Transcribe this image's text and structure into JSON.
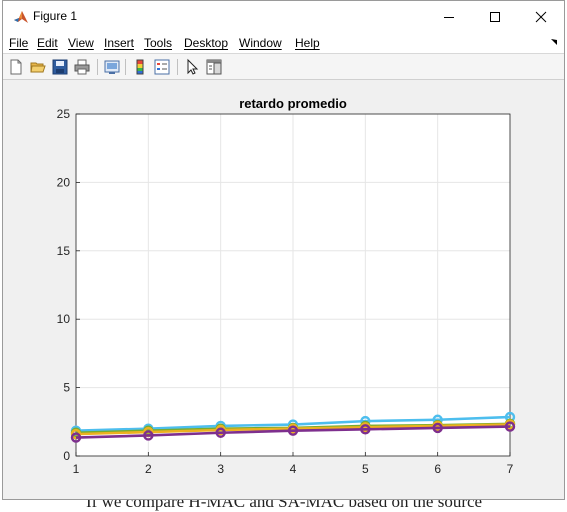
{
  "window": {
    "title": "Figure 1",
    "icon": "matlab-icon"
  },
  "window_controls": {
    "minimize": "minimize-icon",
    "maximize": "maximize-icon",
    "close": "close-icon"
  },
  "menu": {
    "items": [
      "File",
      "Edit",
      "View",
      "Insert",
      "Tools",
      "Desktop",
      "Window",
      "Help"
    ]
  },
  "toolbar": {
    "buttons": [
      "new-figure-icon",
      "open-file-icon",
      "save-icon",
      "print-icon",
      "link-plot-icon",
      "insert-colorbar-icon",
      "insert-legend-icon",
      "edit-plot-icon",
      "property-inspector-icon"
    ]
  },
  "background_text": "If we compare H-MAC and SA-MAC based on the source",
  "chart_data": {
    "type": "line",
    "title": "retardo promedio",
    "xlabel": "",
    "ylabel": "",
    "x": [
      1,
      2,
      3,
      4,
      5,
      6,
      7
    ],
    "xlim": [
      1,
      7
    ],
    "ylim": [
      0,
      25
    ],
    "xticks": [
      "1",
      "2",
      "3",
      "4",
      "5",
      "6",
      "7"
    ],
    "yticks": [
      "0",
      "5",
      "10",
      "15",
      "20",
      "25"
    ],
    "grid": true,
    "legend": "none",
    "series": [
      {
        "color": "#4dbeee",
        "values": [
          1.85,
          2.0,
          2.2,
          2.3,
          2.55,
          2.65,
          2.85
        ]
      },
      {
        "color": "#77ac30",
        "values": [
          1.7,
          1.85,
          2.0,
          2.05,
          2.2,
          2.25,
          2.35
        ]
      },
      {
        "color": "#edb120",
        "values": [
          1.6,
          1.75,
          1.9,
          2.0,
          2.1,
          2.2,
          2.3
        ]
      },
      {
        "color": "#7e2f8e",
        "values": [
          1.35,
          1.5,
          1.7,
          1.85,
          1.95,
          2.05,
          2.15
        ]
      }
    ]
  }
}
